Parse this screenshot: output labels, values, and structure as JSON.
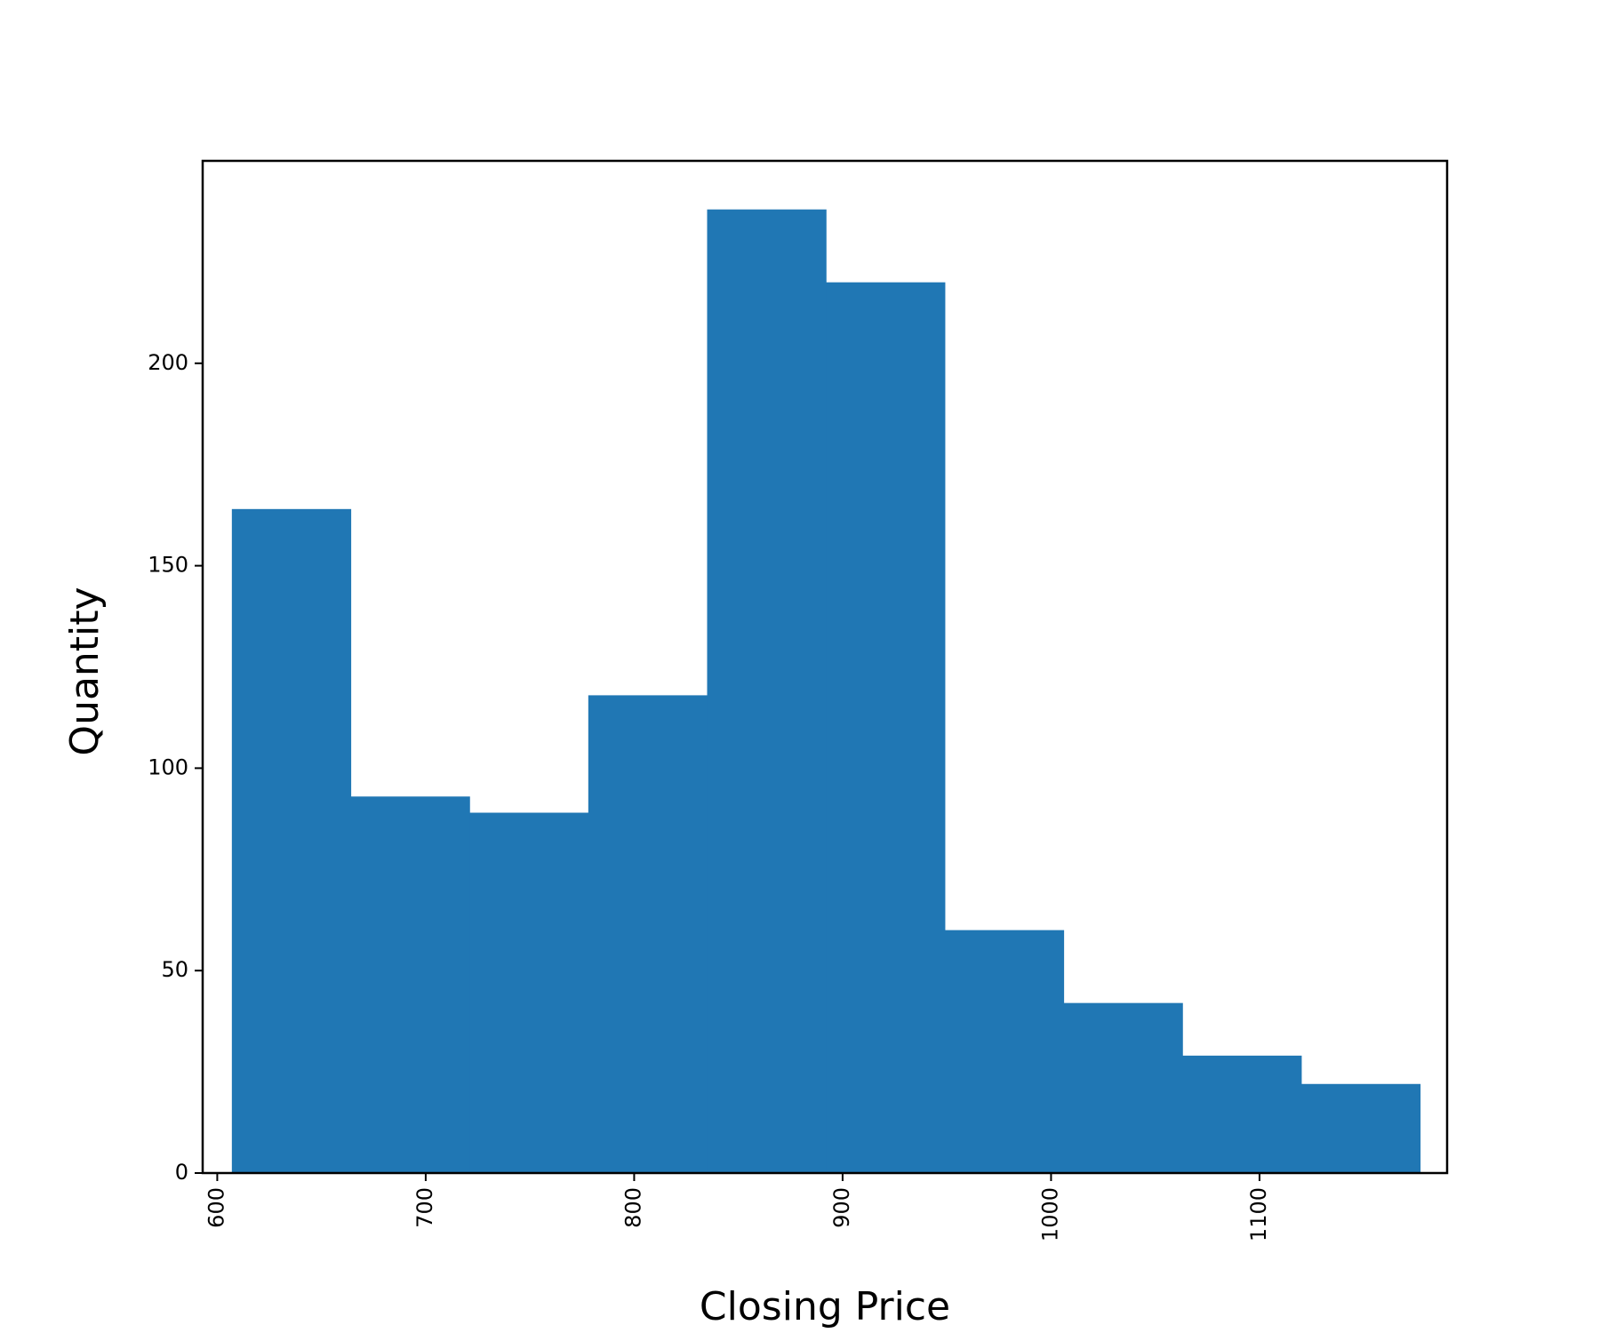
{
  "chart_data": {
    "type": "bar",
    "subtype": "histogram",
    "xlabel": "Closing Price",
    "ylabel": "Quantity",
    "xlim": [
      593,
      1190
    ],
    "ylim": [
      0,
      250
    ],
    "x_ticks": [
      600,
      700,
      800,
      900,
      1000,
      1100
    ],
    "y_ticks": [
      0,
      50,
      100,
      150,
      200
    ],
    "bin_edges": [
      607,
      664,
      721,
      778,
      835,
      892,
      949,
      1006,
      1063,
      1120,
      1177
    ],
    "values": [
      164,
      93,
      89,
      118,
      238,
      220,
      60,
      42,
      29,
      22
    ],
    "bar_color": "#2077b4",
    "grid": false
  }
}
